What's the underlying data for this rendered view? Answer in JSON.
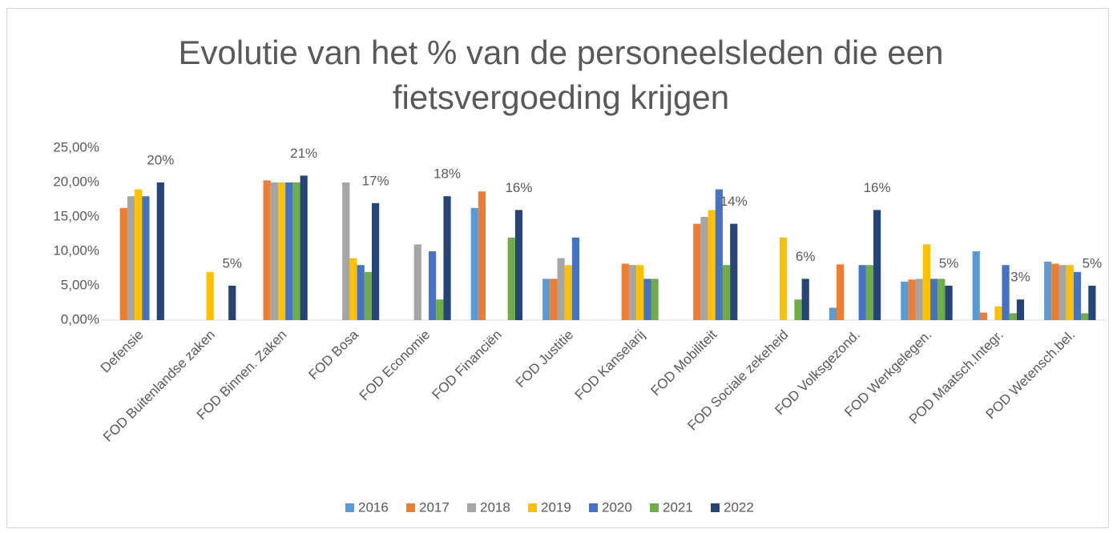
{
  "chart_data": {
    "type": "bar",
    "title": "Evolutie van het % van de personeelsleden die een fietsvergoeding krijgen",
    "categories": [
      "Defensie",
      "FOD Buitenlandse zaken",
      "FOD Binnen. Zaken",
      "FOD Bosa",
      "FOD Economie",
      "FOD Financiën",
      "FOD Justitie",
      "FOD Kanselarij",
      "FOD Mobiliteit",
      "FOD Sociale zekeheid",
      "FOD Volksgezond.",
      "FOD Werkgelegen.",
      "POD Maatsch.Integr.",
      "POD Wetensch.bel."
    ],
    "series": [
      {
        "name": "2016",
        "color": "#5b9bd5",
        "values": [
          null,
          null,
          null,
          null,
          null,
          16.3,
          6,
          null,
          null,
          null,
          1.8,
          5.6,
          10,
          8.5
        ]
      },
      {
        "name": "2017",
        "color": "#ed7d31",
        "values": [
          16.3,
          null,
          20.3,
          null,
          null,
          18.7,
          6,
          8.2,
          14,
          null,
          8.1,
          5.9,
          1.1,
          8.2
        ]
      },
      {
        "name": "2018",
        "color": "#a5a5a5",
        "values": [
          18,
          null,
          20,
          20,
          11,
          null,
          9,
          8,
          15,
          null,
          null,
          6,
          null,
          8
        ]
      },
      {
        "name": "2019",
        "color": "#ffc000",
        "values": [
          19,
          7,
          20,
          9,
          null,
          null,
          8,
          8,
          16,
          12,
          null,
          11,
          2,
          8
        ]
      },
      {
        "name": "2020",
        "color": "#4472c4",
        "values": [
          18,
          null,
          20,
          8,
          10,
          null,
          12,
          6,
          19,
          null,
          8,
          6,
          8,
          7
        ]
      },
      {
        "name": "2021",
        "color": "#70ad47",
        "values": [
          null,
          null,
          20,
          7,
          3,
          12,
          null,
          6,
          8,
          3,
          8,
          6,
          1,
          1
        ]
      },
      {
        "name": "2022",
        "color": "#264478",
        "values": [
          20,
          5,
          21,
          17,
          18,
          16,
          null,
          null,
          14,
          6,
          16,
          5,
          3,
          5
        ],
        "value_labels": [
          "20%",
          "5%",
          "21%",
          "17%",
          "18%",
          "16%",
          null,
          null,
          "14%",
          "6%",
          "16%",
          "5%",
          "3%",
          "5%"
        ]
      }
    ],
    "ylim": [
      0,
      25
    ],
    "yticks": [
      {
        "value": 0,
        "label": "0,00%"
      },
      {
        "value": 5,
        "label": "5,00%"
      },
      {
        "value": 10,
        "label": "10,00%"
      },
      {
        "value": 15,
        "label": "15,00%"
      },
      {
        "value": 20,
        "label": "20,00%"
      },
      {
        "value": 25,
        "label": "25,00%"
      }
    ],
    "grid": false
  }
}
